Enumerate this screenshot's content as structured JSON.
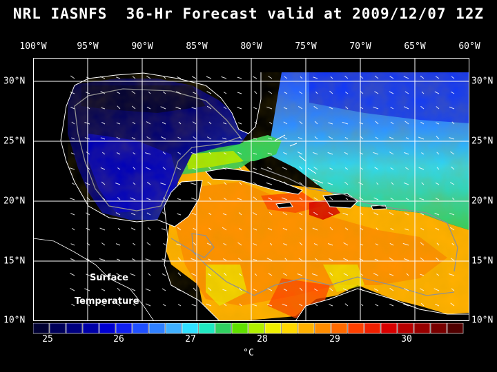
{
  "title": "NRL IASNFS  36-Hr Forecast valid at 2009/12/07 12Z",
  "lon_labels": [
    "100°W",
    "95°W",
    "90°W",
    "85°W",
    "80°W",
    "75°W",
    "70°W",
    "65°W",
    "60°W"
  ],
  "lat_labels": [
    "30°N",
    "25°N",
    "20°N",
    "15°N",
    "10°N"
  ],
  "annotation": {
    "line1": "Surface",
    "line2": "Temperature"
  },
  "colorbar": {
    "ticks": [
      "25",
      "26",
      "27",
      "28",
      "29",
      "30"
    ],
    "unit": "°C",
    "colors": [
      "#000033",
      "#00005a",
      "#000080",
      "#0000a8",
      "#0000d0",
      "#1020f0",
      "#2050ff",
      "#3080ff",
      "#40b0ff",
      "#30e0ff",
      "#20e8c0",
      "#30d060",
      "#60e000",
      "#b0f000",
      "#f0f000",
      "#ffd800",
      "#ffb000",
      "#ff8c00",
      "#ff6a00",
      "#ff4000",
      "#f02000",
      "#d80000",
      "#b80000",
      "#980000",
      "#780000",
      "#500000"
    ]
  },
  "map": {
    "lon_range": [
      -100,
      -60
    ],
    "lat_range": [
      10,
      31
    ],
    "colors": {
      "land": "#000000",
      "coast": "#ffffff",
      "grid": "#ffffff",
      "bathy": "#909090"
    }
  }
}
